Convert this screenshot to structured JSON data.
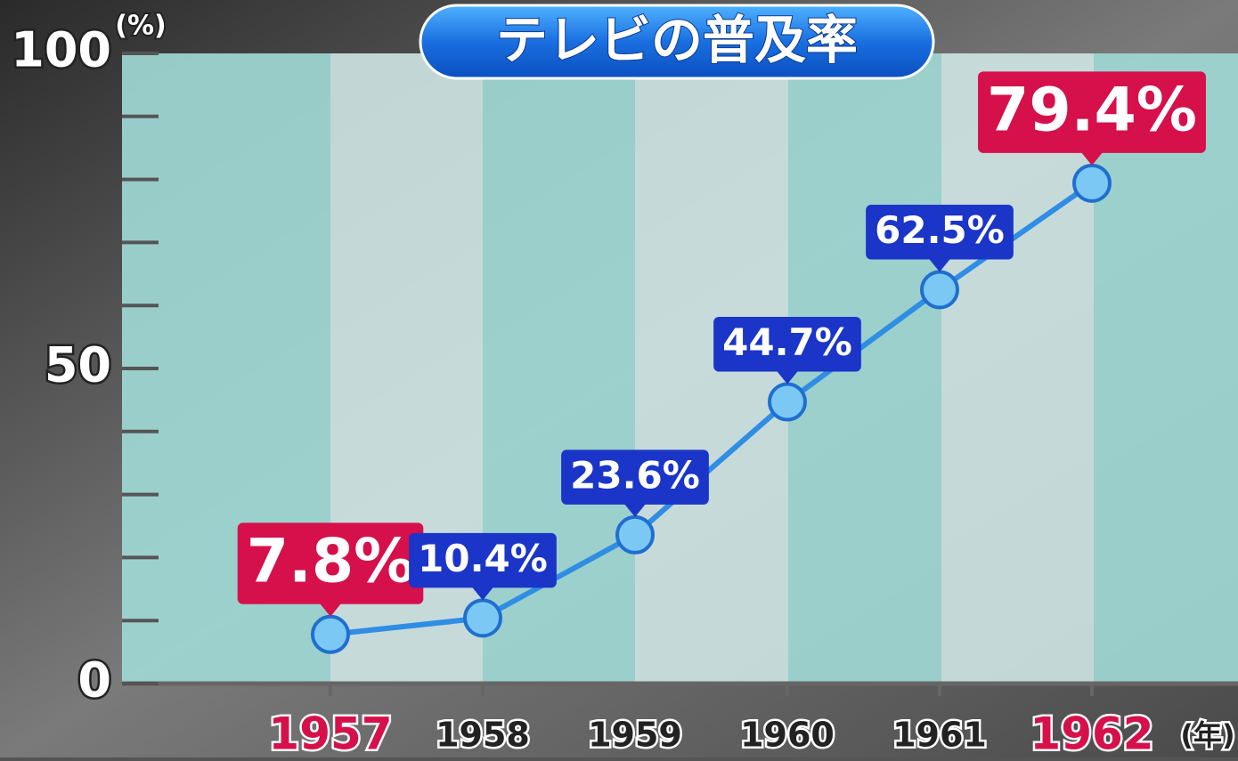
{
  "chart_data": {
    "type": "line",
    "title": "テレビの普及率",
    "y_label": "(%)",
    "x_label": "(年)",
    "categories": [
      "1957",
      "1958",
      "1959",
      "1960",
      "1961",
      "1962"
    ],
    "values": [
      7.8,
      10.4,
      23.6,
      44.7,
      62.5,
      79.4
    ],
    "value_labels": [
      "7.8%",
      "10.4%",
      "23.6%",
      "44.7%",
      "62.5%",
      "79.4%"
    ],
    "ylim": [
      0,
      100
    ],
    "yticks": [
      0,
      50,
      100
    ],
    "yminorticks": [
      10,
      20,
      30,
      40,
      60,
      70,
      80,
      90
    ],
    "color": "#2f8de4",
    "label_color": "#1a35c8",
    "highlight_color": "#d6104a",
    "highlight_indices": [
      0,
      5
    ]
  }
}
